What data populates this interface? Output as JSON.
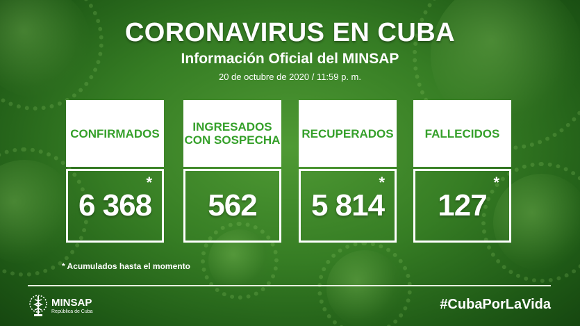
{
  "header": {
    "title": "CORONAVIRUS EN CUBA",
    "subtitle": "Información Oficial del MINSAP",
    "date": "20 de octubre de 2020 / 11:59 p. m."
  },
  "cards": [
    {
      "label": "CONFIRMADOS",
      "value": "6 368",
      "asterisk": "*"
    },
    {
      "label_line1": "INGRESADOS",
      "label_line2": "CON SOSPECHA",
      "value": "562"
    },
    {
      "label": "RECUPERADOS",
      "value": "5 814",
      "asterisk": "*"
    },
    {
      "label": "FALLECIDOS",
      "value": "127",
      "asterisk": "*"
    }
  ],
  "footnote": "* Acumulados hasta el momento",
  "logo": {
    "name": "MINSAP",
    "subtitle": "República de Cuba",
    "icon": "caduceus-emblem-icon"
  },
  "hashtag": "#CubaPorLaVida",
  "colors": {
    "accent_green": "#35a02a",
    "background_green": "#367d24"
  }
}
